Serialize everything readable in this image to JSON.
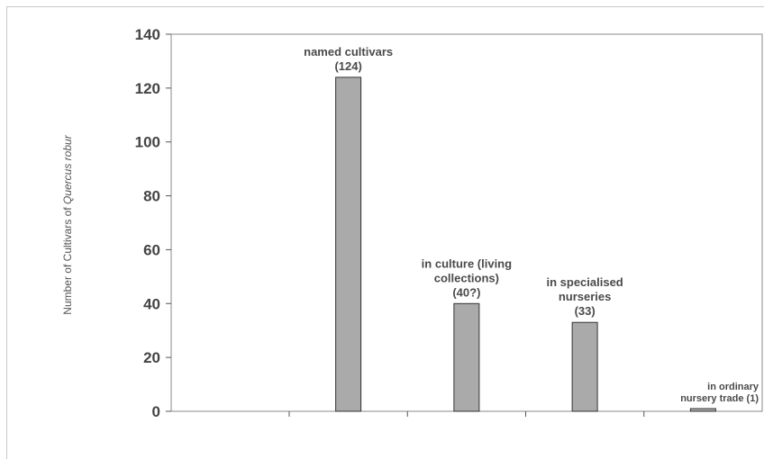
{
  "chart_data": {
    "type": "bar",
    "categories": [
      "named cultivars",
      "in culture (living collections)",
      "in specialised nurseries",
      "in ordinary nursery trade"
    ],
    "values": [
      124,
      40,
      33,
      1
    ],
    "data_labels": [
      [
        "named cultivars",
        "(124)"
      ],
      [
        "in culture (living",
        "collections)",
        "(40?)"
      ],
      [
        "in specialised",
        "nurseries",
        "(33)"
      ],
      [
        "in ordinary",
        "nursery trade (1)"
      ]
    ],
    "ylabel_prefix": "Number of Cultivars of ",
    "ylabel_species": "Quercus robur",
    "ylim": [
      0,
      140
    ],
    "yticks": [
      0,
      20,
      40,
      60,
      80,
      100,
      120,
      140
    ],
    "grid": false,
    "legend": "none",
    "bar_color": "#aaaaaa",
    "bar_edge_color": "#333333"
  }
}
